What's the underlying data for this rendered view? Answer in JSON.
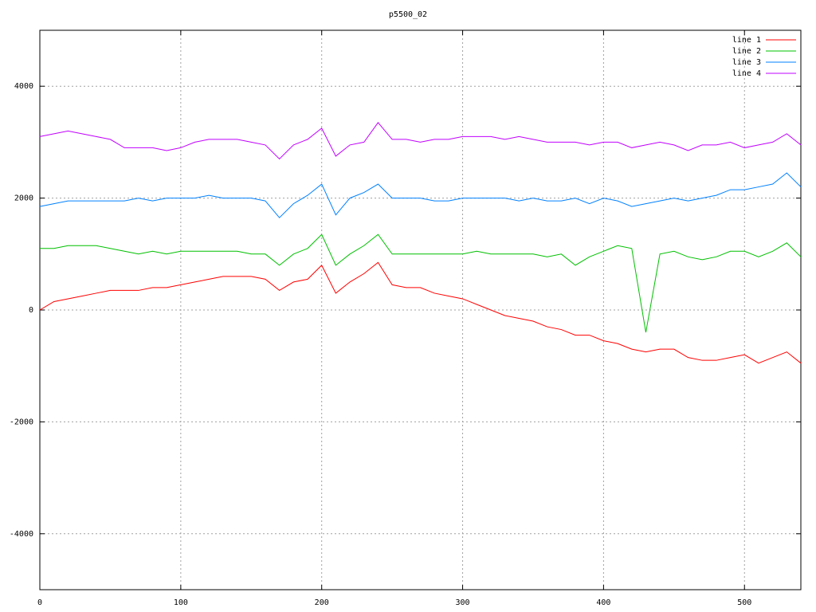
{
  "chart_data": {
    "type": "line",
    "title": "p5500_02",
    "x": [
      0,
      10,
      20,
      30,
      40,
      50,
      60,
      70,
      80,
      90,
      100,
      110,
      120,
      130,
      140,
      150,
      160,
      170,
      180,
      190,
      200,
      210,
      220,
      230,
      240,
      250,
      260,
      270,
      280,
      290,
      300,
      310,
      320,
      330,
      340,
      350,
      360,
      370,
      380,
      390,
      400,
      410,
      420,
      430,
      440,
      450,
      460,
      470,
      480,
      490,
      500,
      510,
      520,
      530,
      540
    ],
    "series": [
      {
        "name": "line 1",
        "color": "#ff0000",
        "values": [
          0,
          150,
          200,
          250,
          300,
          350,
          350,
          350,
          400,
          400,
          450,
          500,
          550,
          600,
          600,
          600,
          550,
          350,
          500,
          550,
          800,
          300,
          500,
          650,
          850,
          450,
          400,
          400,
          300,
          250,
          200,
          100,
          0,
          -100,
          -150,
          -200,
          -300,
          -350,
          -450,
          -450,
          -550,
          -600,
          -700,
          -750,
          -700,
          -700,
          -850,
          -900,
          -900,
          -850,
          -800,
          -950,
          -850,
          -750,
          -950
        ]
      },
      {
        "name": "line 2",
        "color": "#00c000",
        "values": [
          1100,
          1100,
          1150,
          1150,
          1150,
          1100,
          1050,
          1000,
          1050,
          1000,
          1050,
          1050,
          1050,
          1050,
          1050,
          1000,
          1000,
          800,
          1000,
          1100,
          1350,
          800,
          1000,
          1150,
          1350,
          1000,
          1000,
          1000,
          1000,
          1000,
          1000,
          1050,
          1000,
          1000,
          1000,
          1000,
          950,
          1000,
          800,
          950,
          1050,
          1150,
          1100,
          -400,
          1000,
          1050,
          950,
          900,
          950,
          1050,
          1050,
          950,
          1050,
          1200,
          950
        ]
      },
      {
        "name": "line 3",
        "color": "#0080ff",
        "values": [
          1850,
          1900,
          1950,
          1950,
          1950,
          1950,
          1950,
          2000,
          1950,
          2000,
          2000,
          2000,
          2050,
          2000,
          2000,
          2000,
          1950,
          1650,
          1900,
          2050,
          2250,
          1700,
          2000,
          2100,
          2250,
          2000,
          2000,
          2000,
          1950,
          1950,
          2000,
          2000,
          2000,
          2000,
          1950,
          2000,
          1950,
          1950,
          2000,
          1900,
          2000,
          1950,
          1850,
          1900,
          1950,
          2000,
          1950,
          2000,
          2050,
          2150,
          2150,
          2200,
          2250,
          2450,
          2200
        ]
      },
      {
        "name": "line 4",
        "color": "#c000ff",
        "values": [
          3100,
          3150,
          3200,
          3150,
          3100,
          3050,
          2900,
          2900,
          2900,
          2850,
          2900,
          3000,
          3050,
          3050,
          3050,
          3000,
          2950,
          2700,
          2950,
          3050,
          3250,
          2750,
          2950,
          3000,
          3350,
          3050,
          3050,
          3000,
          3050,
          3050,
          3100,
          3100,
          3100,
          3050,
          3100,
          3050,
          3000,
          3000,
          3000,
          2950,
          3000,
          3000,
          2900,
          2950,
          3000,
          2950,
          2850,
          2950,
          2950,
          3000,
          2900,
          2950,
          3000,
          3150,
          2950
        ]
      }
    ],
    "xlim": [
      0,
      540
    ],
    "xticks": [
      0,
      100,
      200,
      300,
      400,
      500
    ],
    "ylim": [
      -5000,
      5000
    ],
    "yticks": [
      -4000,
      -2000,
      0,
      2000,
      4000
    ],
    "grid": true,
    "legend": "top-right"
  }
}
